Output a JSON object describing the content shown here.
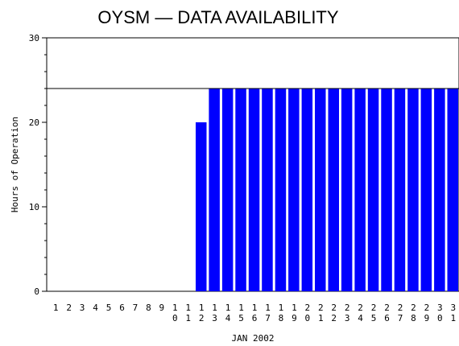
{
  "chart_data": {
    "type": "bar",
    "title": "OYSM — DATA AVAILABILITY",
    "xlabel": "JAN 2002",
    "ylabel": "Hours of Operation",
    "ylim": [
      0,
      30
    ],
    "yticks": [
      0,
      10,
      20,
      30
    ],
    "reference_line": 24,
    "bar_color": "#0000ff",
    "categories": [
      "1",
      "2",
      "3",
      "4",
      "5",
      "6",
      "7",
      "8",
      "9",
      "10",
      "11",
      "12",
      "13",
      "14",
      "15",
      "16",
      "17",
      "18",
      "19",
      "20",
      "21",
      "22",
      "23",
      "24",
      "25",
      "26",
      "27",
      "28",
      "29",
      "30",
      "31"
    ],
    "values": [
      0,
      0,
      0,
      0,
      0,
      0,
      0,
      0,
      0,
      0,
      0,
      20,
      24,
      24,
      24,
      24,
      24,
      24,
      24,
      24,
      24,
      24,
      24,
      24,
      24,
      24,
      24,
      24,
      24,
      24,
      24
    ]
  }
}
